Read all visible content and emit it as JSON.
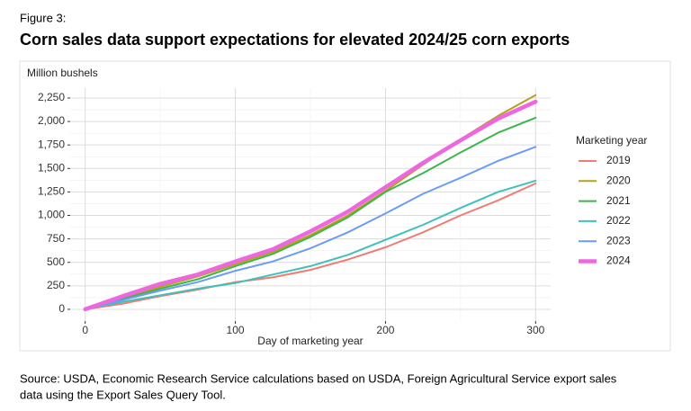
{
  "chart_data": {
    "type": "line",
    "figure_label": "Figure 3:",
    "title": "Corn sales data support expectations for elevated 2024/25 corn exports",
    "y_label": "Million bushels",
    "x_label": "Day of marketing year",
    "legend_title": "Marketing year",
    "legend_position": "right",
    "source": [
      "Source: USDA, Economic Research Service calculations based on USDA, Foreign Agricultural Service export sales",
      "data using the Export Sales Query Tool."
    ],
    "grid": true,
    "x": [
      0,
      25,
      50,
      75,
      100,
      125,
      150,
      175,
      200,
      225,
      250,
      275,
      300
    ],
    "series": [
      {
        "name": "2019",
        "color": "#f07b72",
        "line_width": 2,
        "values": [
          0,
          60,
          140,
          210,
          290,
          340,
          420,
          530,
          660,
          820,
          1000,
          1160,
          1340
        ]
      },
      {
        "name": "2020",
        "color": "#b8a11a",
        "line_width": 2,
        "values": [
          0,
          120,
          240,
          350,
          480,
          610,
          790,
          1000,
          1260,
          1540,
          1810,
          2060,
          2280
        ]
      },
      {
        "name": "2021",
        "color": "#3db54a",
        "line_width": 2,
        "values": [
          0,
          110,
          220,
          320,
          460,
          590,
          770,
          980,
          1250,
          1450,
          1670,
          1880,
          2040
        ]
      },
      {
        "name": "2022",
        "color": "#3fc1bb",
        "line_width": 2,
        "values": [
          0,
          80,
          150,
          220,
          280,
          370,
          460,
          580,
          740,
          900,
          1080,
          1250,
          1370
        ]
      },
      {
        "name": "2023",
        "color": "#6a9cf5",
        "line_width": 2,
        "values": [
          0,
          100,
          200,
          290,
          410,
          510,
          650,
          820,
          1020,
          1230,
          1400,
          1580,
          1730
        ]
      },
      {
        "name": "2024",
        "color": "#ee66e0",
        "line_width": 4.5,
        "values": [
          0,
          140,
          270,
          370,
          510,
          640,
          830,
          1040,
          1300,
          1560,
          1800,
          2030,
          2210
        ]
      }
    ],
    "xlim": [
      -10,
      310
    ],
    "xticks": [
      0,
      100,
      200,
      300
    ],
    "ylim": [
      -125,
      2355
    ],
    "yticks": [
      0,
      250,
      500,
      750,
      {
        "value": 1000,
        "label": "1,000"
      },
      {
        "value": 1250,
        "label": "1,250"
      },
      {
        "value": 1500,
        "label": "1,500"
      },
      {
        "value": 1750,
        "label": "1,750"
      },
      {
        "value": 2000,
        "label": "2,000"
      },
      {
        "value": 2250,
        "label": "2,250"
      }
    ]
  }
}
